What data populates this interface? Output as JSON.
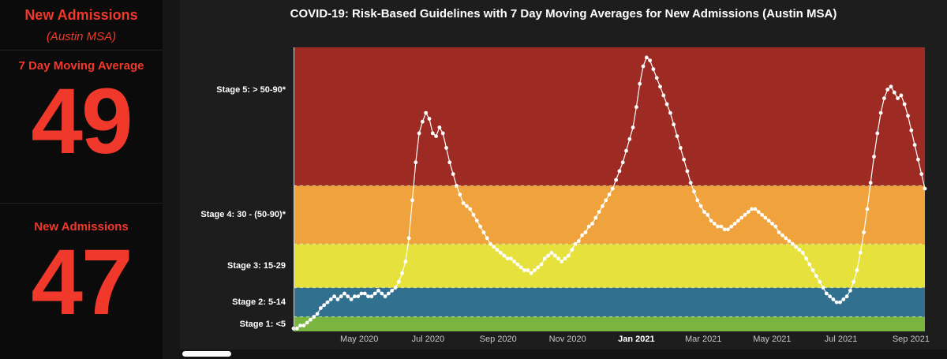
{
  "sidebar": {
    "title": "New Admissions",
    "subtitle": "(Austin MSA)",
    "moving_average": {
      "label": "7 Day Moving Average",
      "value": "49"
    },
    "new_admissions": {
      "label": "New Admissions",
      "value": "47"
    },
    "accent_color": "#f0382b",
    "background_color": "#0b0b0b"
  },
  "chart_data": {
    "type": "line",
    "title": "COVID-19: Risk-Based Guidelines with 7 Day Moving Averages for New Admissions (Austin MSA)",
    "xlabel": "",
    "ylabel": "",
    "ylim": [
      0,
      97.5
    ],
    "grid": false,
    "legend": "none",
    "background_color": "#1d1d1d",
    "boundary_line_color": "#eef4cd",
    "stages": [
      {
        "label": "Stage 1: <5",
        "min": 0,
        "max": 5,
        "color": "#7ab53f",
        "label_value": 2.5
      },
      {
        "label": "Stage 2: 5-14",
        "min": 5,
        "max": 15,
        "color": "#32708f",
        "label_value": 10
      },
      {
        "label": "Stage 3: 15-29",
        "min": 15,
        "max": 30,
        "color": "#e6e13d",
        "label_value": 22.5
      },
      {
        "label": "Stage 4: 30 - (50-90)*",
        "min": 30,
        "max": 50,
        "color": "#f0a33c",
        "label_value": 40
      },
      {
        "label": "Stage 5: > 50-90*",
        "min": 50,
        "max": 97.5,
        "color": "#9d2b24",
        "label_value": 83
      }
    ],
    "x_ticks": [
      {
        "label": "May 2020",
        "f": 0.104
      },
      {
        "label": "Jul 2020",
        "f": 0.213
      },
      {
        "label": "Sep 2020",
        "f": 0.324
      },
      {
        "label": "Nov 2020",
        "f": 0.434
      },
      {
        "label": "Jan 2021",
        "f": 0.543,
        "bold": true
      },
      {
        "label": "Mar 2021",
        "f": 0.649
      },
      {
        "label": "May 2021",
        "f": 0.758
      },
      {
        "label": "Jul 2021",
        "f": 0.867
      },
      {
        "label": "Sep 2021",
        "f": 0.978
      }
    ],
    "series": [
      {
        "name": "7 Day Moving Average",
        "color": "#ffffff",
        "marker": "circle",
        "sample_interval_days": 3,
        "values": [
          1,
          1,
          2,
          2,
          3,
          4,
          5,
          6,
          8,
          9,
          10,
          11,
          12,
          11,
          12,
          13,
          12,
          11,
          12,
          12,
          13,
          13,
          12,
          12,
          13,
          14,
          13,
          12,
          13,
          14,
          15,
          17,
          20,
          24,
          32,
          45,
          58,
          68,
          72,
          75,
          73,
          68,
          67,
          70,
          68,
          63,
          58,
          54,
          50,
          47,
          44,
          43,
          42,
          40,
          38,
          36,
          34,
          32,
          30,
          29,
          28,
          27,
          26,
          25,
          25,
          24,
          23,
          22,
          21,
          21,
          20,
          21,
          22,
          23,
          25,
          26,
          27,
          26,
          25,
          24,
          25,
          26,
          28,
          30,
          31,
          33,
          34,
          36,
          37,
          39,
          41,
          43,
          45,
          47,
          49,
          52,
          55,
          58,
          62,
          66,
          70,
          77,
          85,
          91,
          94,
          93,
          90,
          87,
          84,
          81,
          78,
          75,
          71,
          67,
          63,
          59,
          55,
          51,
          48,
          45,
          43,
          41,
          40,
          38,
          37,
          36,
          36,
          35,
          35,
          36,
          37,
          38,
          39,
          40,
          41,
          42,
          42,
          41,
          40,
          39,
          38,
          37,
          36,
          34,
          33,
          32,
          31,
          30,
          29,
          28,
          27,
          25,
          23,
          21,
          19,
          17,
          15,
          13,
          12,
          11,
          10,
          10,
          11,
          12,
          14,
          17,
          21,
          27,
          34,
          42,
          51,
          60,
          68,
          75,
          80,
          83,
          84,
          82,
          80,
          81,
          78,
          74,
          69,
          64,
          59,
          54,
          49
        ]
      }
    ]
  }
}
